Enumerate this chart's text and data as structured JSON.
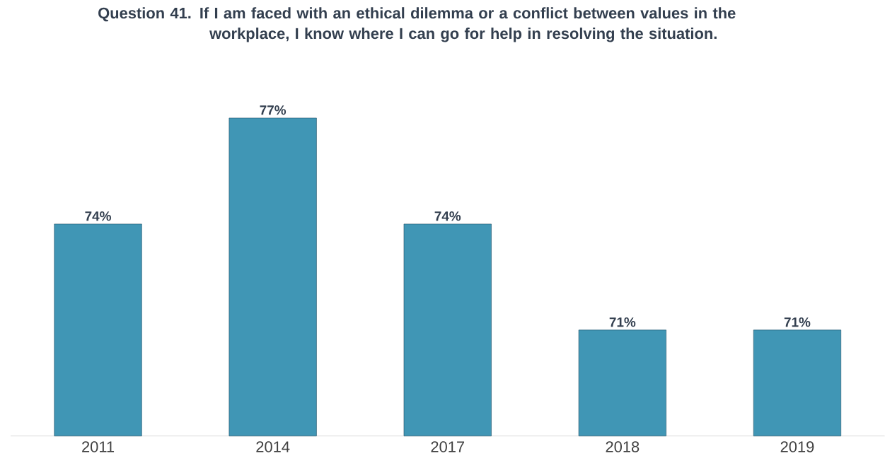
{
  "chart_data": {
    "type": "bar",
    "title": "Question 41. If I am faced with an ethical dilemma or a conflict between values in the workplace, I know where I can go for help in resolving the situation.",
    "categories": [
      "2011",
      "2014",
      "2017",
      "2018",
      "2019"
    ],
    "values": [
      74,
      77,
      74,
      71,
      71
    ],
    "value_labels": [
      "74%",
      "77%",
      "74%",
      "71%",
      "71%"
    ],
    "color": "#4096b5",
    "ylim": [
      68,
      77
    ]
  }
}
